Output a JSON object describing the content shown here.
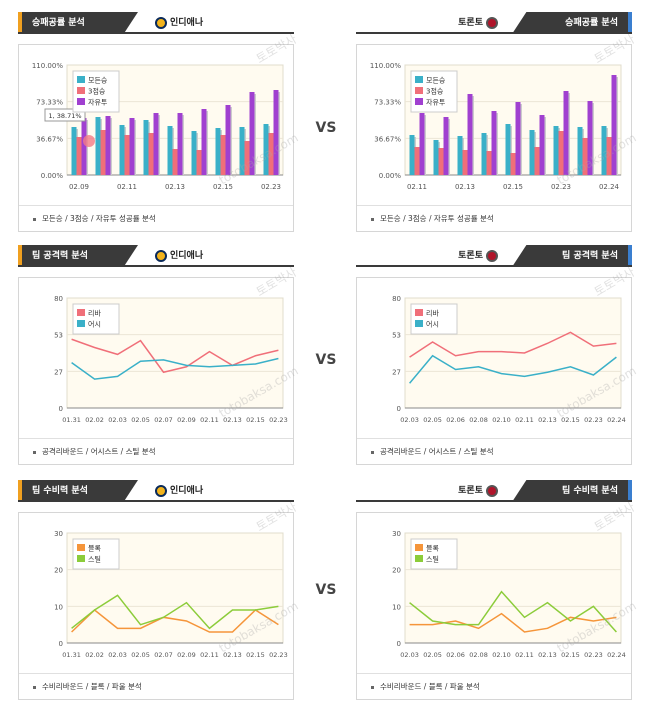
{
  "vs_label": "VS",
  "watermarks": [
    "토토박사",
    "totobaksa.com"
  ],
  "panels": [
    {
      "id": "p1",
      "side": "left",
      "top": 12,
      "title": "승패공률 분석",
      "team": "인디애나",
      "logo": "ind",
      "footer": "모든승 / 3점승 / 자유투 성공률 분석",
      "chart_data": {
        "type": "bar",
        "categories": [
          "02.09",
          "",
          "02.11",
          "",
          "02.13",
          "",
          "02.15",
          "",
          "02.23"
        ],
        "ylim": [
          0,
          110
        ],
        "yticks": [
          "0.00%",
          "36.67%",
          "73.33%",
          "110.00%"
        ],
        "series": [
          {
            "name": "모든승",
            "color": "#3ab0c8",
            "values": [
              48,
              58,
              50,
              55,
              49,
              44,
              47,
              48,
              51
            ]
          },
          {
            "name": "3점승",
            "color": "#f06f79",
            "values": [
              38,
              45,
              40,
              42,
              26,
              25,
              40,
              34,
              42
            ]
          },
          {
            "name": "자유투",
            "color": "#a040d0",
            "values": [
              57,
              59,
              57,
              62,
              62,
              66,
              70,
              83,
              85
            ]
          }
        ],
        "tooltip": "1, 38.71%"
      }
    },
    {
      "id": "p2",
      "side": "right",
      "top": 12,
      "title": "승패공률 분석",
      "team": "토론토",
      "logo": "tor",
      "footer": "모든승 / 3점승 / 자유투 성공률 분석",
      "chart_data": {
        "type": "bar",
        "categories": [
          "02.11",
          "",
          "02.13",
          "",
          "02.15",
          "",
          "02.23",
          "",
          "02.24"
        ],
        "ylim": [
          0,
          110
        ],
        "yticks": [
          "0.00%",
          "36.67%",
          "73.33%",
          "110.00%"
        ],
        "series": [
          {
            "name": "모든승",
            "color": "#3ab0c8",
            "values": [
              40,
              35,
              39,
              42,
              51,
              45,
              49,
              48,
              49
            ]
          },
          {
            "name": "3점승",
            "color": "#f06f79",
            "values": [
              28,
              27,
              25,
              24,
              22,
              28,
              44,
              37,
              38
            ]
          },
          {
            "name": "자유투",
            "color": "#a040d0",
            "values": [
              62,
              58,
              81,
              64,
              73,
              60,
              84,
              74,
              100
            ]
          }
        ]
      }
    },
    {
      "id": "p3",
      "side": "left",
      "top": 245,
      "title": "팀 공격력 분석",
      "team": "인디애나",
      "logo": "ind",
      "footer": "공격리바운드 / 어시스트 / 스틸 분석",
      "chart_data": {
        "type": "line",
        "categories": [
          "01.31",
          "02.02",
          "02.03",
          "02.05",
          "02.07",
          "02.09",
          "02.11",
          "02.13",
          "02.15",
          "02.23"
        ],
        "ylim": [
          0,
          80
        ],
        "yticks": [
          "0",
          "27",
          "53",
          "80"
        ],
        "series": [
          {
            "name": "리바",
            "color": "#f06f79",
            "values": [
              50,
              44,
              39,
              49,
              26,
              30,
              41,
              31,
              38,
              42
            ]
          },
          {
            "name": "어시",
            "color": "#3ab0c8",
            "values": [
              33,
              21,
              23,
              34,
              35,
              31,
              30,
              31,
              32,
              36
            ]
          }
        ]
      }
    },
    {
      "id": "p4",
      "side": "right",
      "top": 245,
      "title": "팀 공격력 분석",
      "team": "토론토",
      "logo": "tor",
      "footer": "공격리바운드 / 어시스트 / 스틸 분석",
      "chart_data": {
        "type": "line",
        "categories": [
          "02.03",
          "02.05",
          "02.06",
          "02.08",
          "02.10",
          "02.11",
          "02.13",
          "02.15",
          "02.23",
          "02.24"
        ],
        "ylim": [
          0,
          80
        ],
        "yticks": [
          "0",
          "27",
          "53",
          "80"
        ],
        "series": [
          {
            "name": "리바",
            "color": "#f06f79",
            "values": [
              37,
              48,
              38,
              41,
              41,
              40,
              47,
              55,
              45,
              47
            ]
          },
          {
            "name": "어시",
            "color": "#3ab0c8",
            "values": [
              18,
              38,
              28,
              30,
              25,
              23,
              26,
              30,
              24,
              37
            ]
          }
        ]
      }
    },
    {
      "id": "p5",
      "side": "left",
      "top": 480,
      "title": "팀 수비력 분석",
      "team": "인디애나",
      "logo": "ind",
      "footer": "수비리바운드 / 블록 / 파울 분석",
      "chart_data": {
        "type": "line",
        "categories": [
          "01.31",
          "02.02",
          "02.03",
          "02.05",
          "02.07",
          "02.09",
          "02.11",
          "02.13",
          "02.15",
          "02.23"
        ],
        "ylim": [
          0,
          30
        ],
        "yticks": [
          "0",
          "10",
          "20",
          "30"
        ],
        "series": [
          {
            "name": "블록",
            "color": "#f5953a",
            "values": [
              3,
              9,
              4,
              4,
              7,
              6,
              3,
              3,
              9,
              5
            ]
          },
          {
            "name": "스틸",
            "color": "#8ccc3a",
            "values": [
              4,
              9,
              13,
              5,
              7,
              11,
              4,
              9,
              9,
              10
            ]
          }
        ]
      }
    },
    {
      "id": "p6",
      "side": "right",
      "top": 480,
      "title": "팀 수비력 분석",
      "team": "토론토",
      "logo": "tor",
      "footer": "수비리바운드 / 블록 / 파울 분석",
      "chart_data": {
        "type": "line",
        "categories": [
          "02.03",
          "02.05",
          "02.06",
          "02.08",
          "02.10",
          "02.11",
          "02.13",
          "02.15",
          "02.23",
          "02.24"
        ],
        "ylim": [
          0,
          30
        ],
        "yticks": [
          "0",
          "10",
          "20",
          "30"
        ],
        "series": [
          {
            "name": "블록",
            "color": "#f5953a",
            "values": [
              5,
              5,
              6,
              4,
              8,
              3,
              4,
              7,
              6,
              7
            ]
          },
          {
            "name": "스틸",
            "color": "#8ccc3a",
            "values": [
              11,
              6,
              5,
              5,
              14,
              7,
              11,
              6,
              10,
              3
            ]
          }
        ]
      }
    }
  ]
}
